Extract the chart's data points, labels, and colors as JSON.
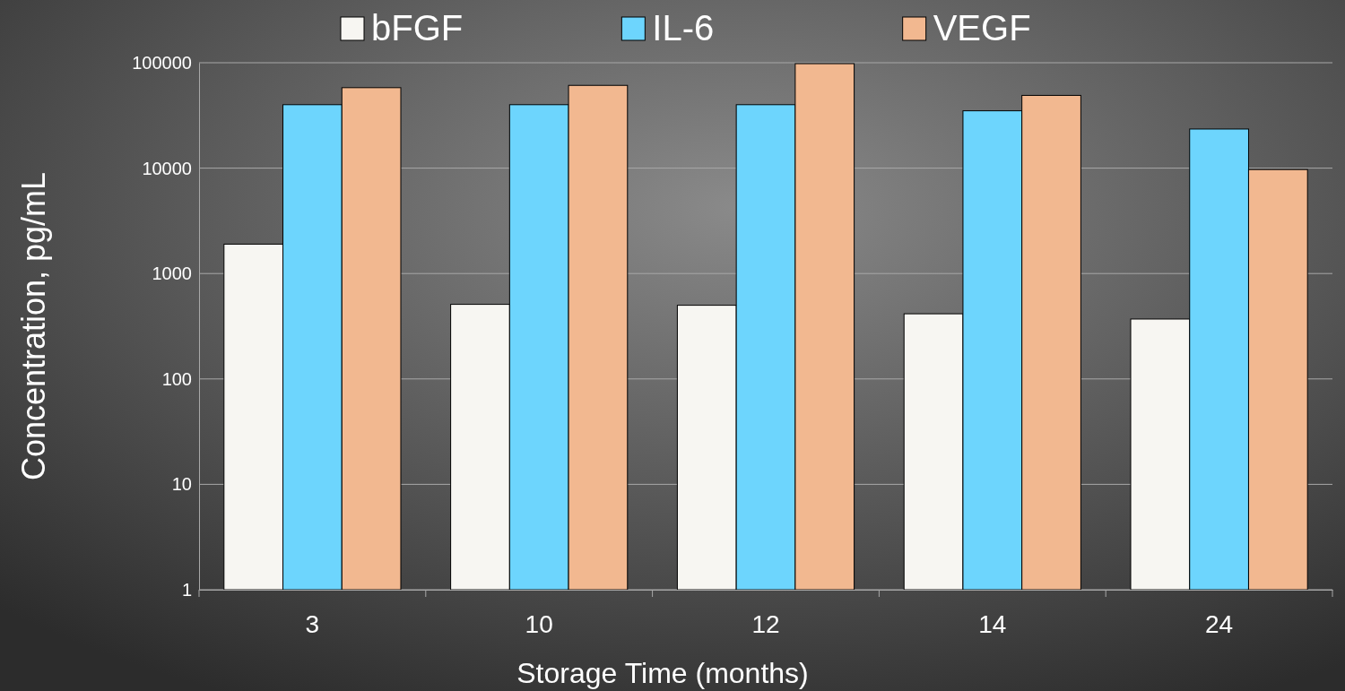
{
  "chart_data": {
    "type": "bar",
    "xlabel": "Storage Time (months)",
    "ylabel": "Concentration, pg/mL",
    "categories": [
      "3",
      "10",
      "12",
      "14",
      "24"
    ],
    "series": [
      {
        "name": "bFGF",
        "color": "#f7f6f2",
        "values": [
          1900,
          510,
          500,
          415,
          370
        ]
      },
      {
        "name": "IL-6",
        "color": "#6dd5fd",
        "values": [
          40000,
          40000,
          40000,
          35000,
          23500
        ]
      },
      {
        "name": "VEGF",
        "color": "#f2b890",
        "values": [
          58000,
          61000,
          98000,
          49000,
          9700
        ]
      }
    ],
    "log": true,
    "ylim": [
      1,
      100000
    ],
    "yticks": [
      1,
      10,
      100,
      1000,
      10000,
      100000
    ],
    "grid": "y",
    "legend": "top"
  }
}
